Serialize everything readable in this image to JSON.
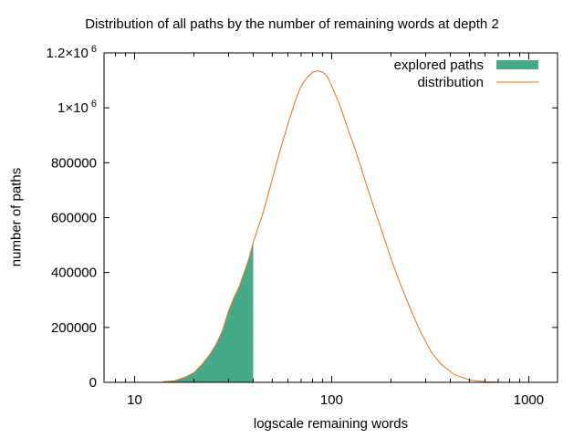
{
  "chart_data": {
    "type": "area",
    "title": "Distribution of all paths by the number of remaining words at depth 2",
    "xlabel": "logscale remaining words",
    "ylabel": "number of paths",
    "x_scale": "log",
    "xlim": [
      7,
      1400
    ],
    "ylim": [
      0,
      1200000
    ],
    "x_ticks": [
      {
        "value": 10,
        "label": "10"
      },
      {
        "value": 100,
        "label": "100"
      },
      {
        "value": 1000,
        "label": "1000"
      }
    ],
    "y_ticks": [
      {
        "value": 0,
        "label": "0"
      },
      {
        "value": 200000,
        "label": "200000"
      },
      {
        "value": 400000,
        "label": "400000"
      },
      {
        "value": 600000,
        "label": "600000"
      },
      {
        "value": 800000,
        "label": "800000"
      },
      {
        "value": 1000000,
        "label": "1×10",
        "sup": "6"
      },
      {
        "value": 1200000,
        "label": "1.2×10",
        "sup": "6"
      }
    ],
    "grid": false,
    "legend_position": "top-right",
    "series": [
      {
        "name": "explored paths",
        "style": "filled",
        "color": "#44aa88",
        "x": [
          14,
          16,
          18,
          20,
          22,
          24,
          26,
          28,
          30,
          32,
          34,
          36,
          38,
          40
        ],
        "y": [
          2000,
          6000,
          18000,
          35000,
          65000,
          100000,
          140000,
          190000,
          260000,
          310000,
          350000,
          400000,
          450000,
          510000
        ]
      },
      {
        "name": "distribution",
        "style": "line",
        "color": "#e8701a",
        "x": [
          14,
          16,
          18,
          20,
          22,
          24,
          26,
          28,
          30,
          32,
          34,
          36,
          38,
          40,
          45,
          50,
          55,
          60,
          65,
          70,
          75,
          80,
          85,
          90,
          95,
          100,
          110,
          120,
          130,
          140,
          150,
          165,
          180,
          200,
          220,
          250,
          280,
          320,
          360,
          420,
          500,
          600,
          700
        ],
        "y": [
          2000,
          6000,
          18000,
          35000,
          65000,
          100000,
          140000,
          190000,
          260000,
          310000,
          350000,
          400000,
          450000,
          510000,
          620000,
          740000,
          850000,
          940000,
          1020000,
          1080000,
          1110000,
          1130000,
          1135000,
          1130000,
          1115000,
          1080000,
          1010000,
          930000,
          860000,
          790000,
          720000,
          630000,
          550000,
          450000,
          370000,
          270000,
          190000,
          110000,
          65000,
          28000,
          9000,
          2000,
          500
        ]
      }
    ]
  }
}
